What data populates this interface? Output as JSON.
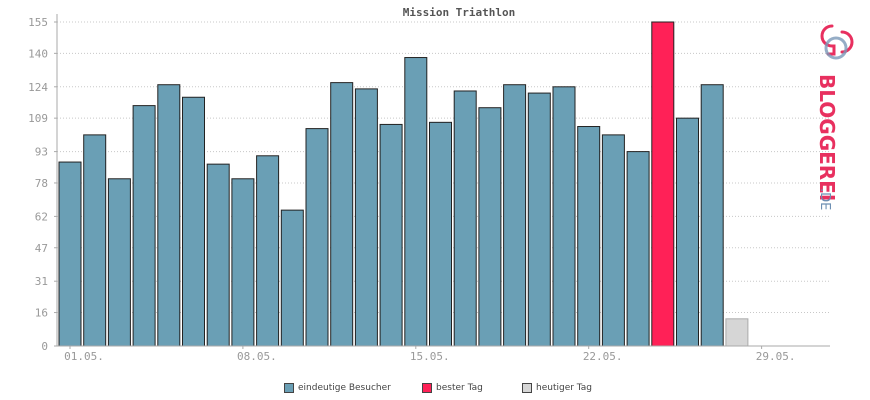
{
  "chart_data": {
    "type": "bar",
    "title": "Mission Triathlon",
    "xlabel": "",
    "ylabel": "",
    "ylim": [
      0,
      155
    ],
    "yticks": [
      "0",
      "16",
      "31",
      "47",
      "62",
      "78",
      "93",
      "109",
      "124",
      "140",
      "155"
    ],
    "xticks": [
      {
        "label": "01.05.",
        "index": 0
      },
      {
        "label": "08.05.",
        "index": 7
      },
      {
        "label": "15.05.",
        "index": 14
      },
      {
        "label": "22.05.",
        "index": 21
      },
      {
        "label": "29.05.",
        "index": 28
      }
    ],
    "grid": true,
    "series": [
      {
        "name": "eindeutige Besucher",
        "color": "#6a9fb5",
        "values": [
          88,
          101,
          80,
          115,
          125,
          119,
          87,
          80,
          91,
          65,
          104,
          126,
          123,
          106,
          138,
          107,
          122,
          114,
          125,
          121,
          124,
          105,
          101,
          93,
          null,
          109,
          125,
          null
        ]
      },
      {
        "name": "bester Tag",
        "color": "#ff2157",
        "values": [
          null,
          null,
          null,
          null,
          null,
          null,
          null,
          null,
          null,
          null,
          null,
          null,
          null,
          null,
          null,
          null,
          null,
          null,
          null,
          null,
          null,
          null,
          null,
          null,
          155,
          null,
          null,
          null
        ]
      },
      {
        "name": "heutiger Tag",
        "color": "#d6d6d6",
        "values": [
          null,
          null,
          null,
          null,
          null,
          null,
          null,
          null,
          null,
          null,
          null,
          null,
          null,
          null,
          null,
          null,
          null,
          null,
          null,
          null,
          null,
          null,
          null,
          null,
          null,
          null,
          null,
          13
        ]
      }
    ],
    "legend_position": "bottom-center"
  },
  "logo": {
    "text": "BLOGGEREI",
    "suffix": ".DE"
  }
}
